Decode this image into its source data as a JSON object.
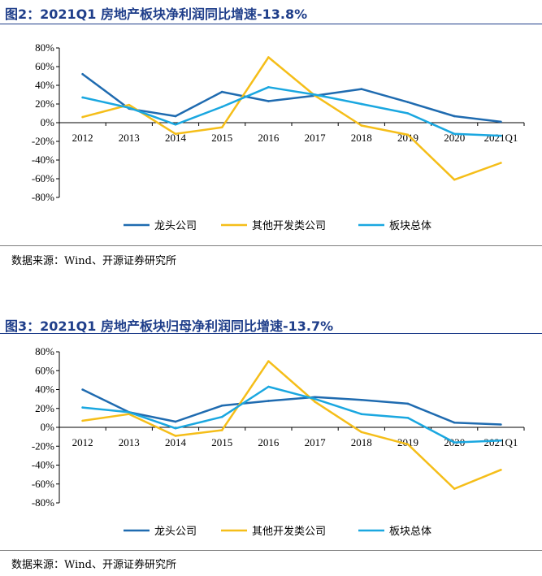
{
  "figures": [
    {
      "title": "图2：2021Q1 房地产板块净利润同比增速-13.8%",
      "source": "数据来源：Wind、开源证券研究所",
      "chart_data": {
        "type": "line",
        "categories": [
          "2012",
          "2013",
          "2014",
          "2015",
          "2016",
          "2017",
          "2018",
          "2019",
          "2020",
          "2021Q1"
        ],
        "ylim": [
          -80,
          80
        ],
        "yticks": [
          "80%",
          "60%",
          "40%",
          "20%",
          "0%",
          "-20%",
          "-40%",
          "-60%",
          "-80%"
        ],
        "ytick_values": [
          80,
          60,
          40,
          20,
          0,
          -20,
          -40,
          -60,
          -80
        ],
        "legend_position": "bottom",
        "series": [
          {
            "name": "龙头公司",
            "color": "#1f6bb0",
            "values": [
              52,
              15,
              7,
              33,
              23,
              29,
              36,
              22,
              7,
              1
            ]
          },
          {
            "name": "其他开发类公司",
            "color": "#f5be19",
            "values": [
              6,
              19,
              -12,
              -5,
              70,
              29,
              -3,
              -13,
              -61,
              -43
            ]
          },
          {
            "name": "板块总体",
            "color": "#1aa7e0",
            "values": [
              27,
              16,
              -2,
              17,
              38,
              30,
              20,
              10,
              -12,
              -14
            ]
          }
        ]
      }
    },
    {
      "title": "图3：2021Q1 房地产板块归母净利润同比增速-13.7%",
      "source": "数据来源：Wind、开源证券研究所",
      "chart_data": {
        "type": "line",
        "categories": [
          "2012",
          "2013",
          "2014",
          "2015",
          "2016",
          "2017",
          "2018",
          "2019",
          "2020",
          "2021Q1"
        ],
        "ylim": [
          -80,
          80
        ],
        "yticks": [
          "80%",
          "60%",
          "40%",
          "20%",
          "0%",
          "-20%",
          "-40%",
          "-60%",
          "-80%"
        ],
        "ytick_values": [
          80,
          60,
          40,
          20,
          0,
          -20,
          -40,
          -60,
          -80
        ],
        "legend_position": "bottom",
        "series": [
          {
            "name": "龙头公司",
            "color": "#1f6bb0",
            "values": [
              40,
              16,
              6,
              23,
              28,
              32,
              29,
              25,
              5,
              3
            ]
          },
          {
            "name": "其他开发类公司",
            "color": "#f5be19",
            "values": [
              7,
              14,
              -9,
              -3,
              70,
              27,
              -5,
              -18,
              -65,
              -45
            ]
          },
          {
            "name": "板块总体",
            "color": "#1aa7e0",
            "values": [
              21,
              16,
              -1,
              11,
              43,
              30,
              14,
              10,
              -16,
              -14
            ]
          }
        ]
      }
    }
  ]
}
